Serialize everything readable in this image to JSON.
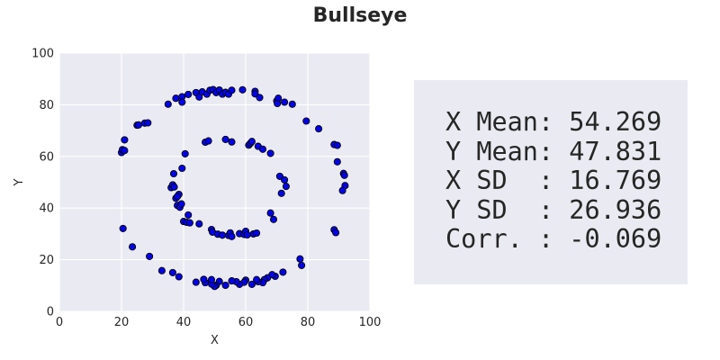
{
  "title": "Bullseye",
  "chart_data": {
    "type": "scatter",
    "title": "Bullseye",
    "xlabel": "X",
    "ylabel": "Y",
    "xlim": [
      0,
      100
    ],
    "ylim": [
      0,
      100
    ],
    "xticks": [
      0,
      20,
      40,
      60,
      80,
      100
    ],
    "yticks": [
      0,
      20,
      40,
      60,
      80,
      100
    ],
    "grid": true,
    "colors": {
      "plot_background": "#eaeaf2",
      "grid": "#ffffff",
      "marker_fill": "#0000ee",
      "marker_edge": "#000000"
    },
    "points": [
      [
        35.0,
        80.2
      ],
      [
        37.5,
        82.5
      ],
      [
        39.5,
        83.1
      ],
      [
        39.5,
        81.0
      ],
      [
        41.5,
        84.0
      ],
      [
        44.0,
        84.7
      ],
      [
        45.0,
        83.0
      ],
      [
        46.0,
        85.0
      ],
      [
        47.5,
        84.1
      ],
      [
        48.5,
        85.6
      ],
      [
        49.5,
        85.9
      ],
      [
        50.5,
        84.7
      ],
      [
        51.5,
        85.7
      ],
      [
        52.5,
        84.1
      ],
      [
        53.5,
        84.8
      ],
      [
        54.5,
        84.1
      ],
      [
        55.5,
        85.6
      ],
      [
        59.0,
        85.8
      ],
      [
        63.0,
        85.2
      ],
      [
        63.0,
        84.2
      ],
      [
        64.5,
        82.8
      ],
      [
        70.0,
        81.5
      ],
      [
        70.5,
        82.5
      ],
      [
        70.2,
        80.5
      ],
      [
        72.5,
        81.0
      ],
      [
        75.0,
        80.2
      ],
      [
        79.5,
        73.7
      ],
      [
        83.5,
        70.7
      ],
      [
        88.5,
        64.6
      ],
      [
        89.5,
        64.3
      ],
      [
        89.5,
        57.9
      ],
      [
        91.5,
        53.4
      ],
      [
        91.8,
        52.7
      ],
      [
        92.0,
        48.7
      ],
      [
        91.2,
        46.8
      ],
      [
        88.5,
        31.6
      ],
      [
        89.0,
        30.5
      ],
      [
        77.5,
        20.3
      ],
      [
        78.0,
        17.8
      ],
      [
        72.0,
        15.2
      ],
      [
        69.5,
        13.6
      ],
      [
        68.5,
        14.2
      ],
      [
        67.0,
        13.0
      ],
      [
        66.0,
        12.3
      ],
      [
        65.5,
        11.1
      ],
      [
        64.0,
        11.5
      ],
      [
        63.5,
        12.3
      ],
      [
        62.0,
        10.5
      ],
      [
        60.0,
        12.1
      ],
      [
        59.5,
        11.3
      ],
      [
        58.0,
        10.5
      ],
      [
        57.0,
        11.5
      ],
      [
        55.5,
        11.8
      ],
      [
        53.5,
        10.1
      ],
      [
        51.5,
        11.6
      ],
      [
        50.5,
        10.1
      ],
      [
        50.0,
        9.7
      ],
      [
        49.0,
        10.6
      ],
      [
        49.0,
        12.3
      ],
      [
        47.0,
        11.1
      ],
      [
        46.5,
        12.4
      ],
      [
        44.0,
        11.3
      ],
      [
        38.5,
        13.4
      ],
      [
        36.5,
        15.0
      ],
      [
        33.0,
        15.8
      ],
      [
        29.0,
        21.3
      ],
      [
        23.5,
        25.0
      ],
      [
        20.5,
        32.1
      ],
      [
        20.0,
        61.5
      ],
      [
        20.3,
        62.6
      ],
      [
        21.0,
        62.3
      ],
      [
        21.0,
        66.4
      ],
      [
        25.0,
        72.1
      ],
      [
        25.5,
        72.2
      ],
      [
        27.5,
        72.9
      ],
      [
        28.5,
        73.0
      ],
      [
        36.0,
        47.9
      ],
      [
        36.5,
        49.0
      ],
      [
        36.8,
        53.3
      ],
      [
        37.0,
        48.2
      ],
      [
        37.5,
        43.8
      ],
      [
        38.0,
        41.0
      ],
      [
        38.5,
        45.3
      ],
      [
        38.0,
        44.5
      ],
      [
        38.8,
        40.3
      ],
      [
        39.3,
        41.6
      ],
      [
        39.5,
        55.4
      ],
      [
        40.5,
        61.0
      ],
      [
        40.0,
        34.8
      ],
      [
        41.0,
        34.5
      ],
      [
        41.5,
        37.3
      ],
      [
        42.0,
        34.3
      ],
      [
        45.0,
        33.9
      ],
      [
        47.0,
        65.5
      ],
      [
        48.0,
        66.0
      ],
      [
        49.0,
        31.7
      ],
      [
        49.3,
        30.7
      ],
      [
        51.0,
        29.9
      ],
      [
        52.5,
        29.5
      ],
      [
        53.5,
        66.6
      ],
      [
        54.5,
        29.4
      ],
      [
        55.5,
        65.6
      ],
      [
        55.0,
        30.4
      ],
      [
        55.5,
        29.0
      ],
      [
        58.0,
        30.1
      ],
      [
        59.5,
        29.8
      ],
      [
        60.0,
        31.0
      ],
      [
        60.5,
        29.6
      ],
      [
        61.0,
        64.4
      ],
      [
        61.5,
        65.1
      ],
      [
        62.0,
        65.8
      ],
      [
        62.5,
        30.0
      ],
      [
        63.5,
        30.3
      ],
      [
        64.0,
        63.9
      ],
      [
        65.5,
        62.8
      ],
      [
        68.0,
        61.2
      ],
      [
        68.0,
        38.1
      ],
      [
        69.0,
        35.6
      ],
      [
        71.0,
        52.3
      ],
      [
        71.5,
        45.7
      ],
      [
        72.5,
        50.9
      ],
      [
        73.0,
        48.4
      ]
    ]
  },
  "stats": [
    {
      "label": "X Mean: ",
      "value": "54.269"
    },
    {
      "label": "Y Mean: ",
      "value": "47.831"
    },
    {
      "label": "X SD  : ",
      "value": "16.769"
    },
    {
      "label": "Y SD  : ",
      "value": "26.936"
    },
    {
      "label": "Corr. : ",
      "value": "-0.069"
    }
  ]
}
